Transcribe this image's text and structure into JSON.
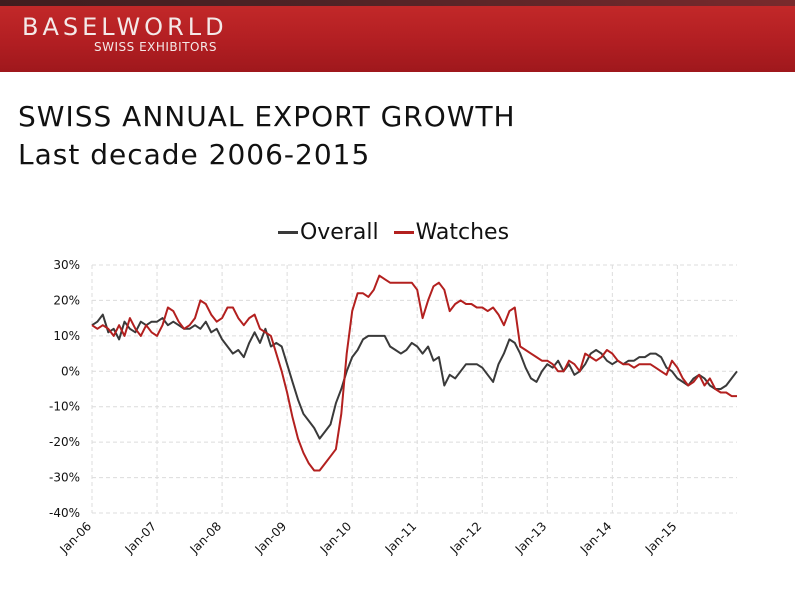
{
  "banner": {
    "brand": "BASELWORLD",
    "sub": "SWISS EXHIBITORS"
  },
  "title": "SWISS ANNUAL EXPORT GROWTH",
  "subtitle": "Last decade 2006-2015",
  "colors": {
    "overall": "#3a3a3a",
    "watches": "#b3201f",
    "grid": "#dcdcdc"
  },
  "chart_data": {
    "type": "line",
    "legend": {
      "placement": "top",
      "entries": [
        "Overall",
        "Watches"
      ]
    },
    "x_start": "Jan-06",
    "x_end": "Dec-15",
    "x_ticks": [
      "Jan-06",
      "Jan-07",
      "Jan-08",
      "Jan-09",
      "Jan-10",
      "Jan-11",
      "Jan-12",
      "Jan-13",
      "Jan-14",
      "Jan-15"
    ],
    "y_ticks": [
      "30%",
      "20%",
      "10%",
      "0%",
      "-10%",
      "-20%",
      "-30%",
      "-40%"
    ],
    "ylim": [
      -40,
      30
    ],
    "grid": true,
    "series": [
      {
        "name": "Overall",
        "values": [
          13,
          14,
          16,
          11,
          12,
          9,
          14,
          12,
          11,
          14,
          13,
          14,
          14,
          15,
          13,
          14,
          13,
          12,
          12,
          13,
          12,
          14,
          11,
          12,
          9,
          7,
          5,
          6,
          4,
          8,
          11,
          8,
          12,
          7,
          8,
          7,
          2,
          -3,
          -8,
          -12,
          -14,
          -16,
          -19,
          -17,
          -15,
          -9,
          -5,
          0,
          4,
          6,
          9,
          10,
          10,
          10,
          10,
          7,
          6,
          5,
          6,
          8,
          7,
          5,
          7,
          3,
          4,
          -4,
          -1,
          -2,
          0,
          2,
          2,
          2,
          1,
          -1,
          -3,
          2,
          5,
          9,
          8,
          5,
          1,
          -2,
          -3,
          0,
          2,
          1,
          3,
          0,
          2,
          -1,
          0,
          2,
          5,
          6,
          5,
          3,
          2,
          3,
          2,
          3,
          3,
          4,
          4,
          5,
          5,
          4,
          1,
          0,
          -2,
          -3,
          -4,
          -2,
          -1,
          -2,
          -4,
          -5,
          -5,
          -4,
          -2,
          0
        ]
      },
      {
        "name": "Watches",
        "values": [
          13,
          12,
          13,
          12,
          10,
          13,
          10,
          15,
          12,
          10,
          13,
          11,
          10,
          13,
          18,
          17,
          14,
          12,
          13,
          15,
          20,
          19,
          16,
          14,
          15,
          18,
          18,
          15,
          13,
          15,
          16,
          12,
          11,
          10,
          5,
          0,
          -6,
          -13,
          -19,
          -23,
          -26,
          -28,
          -28,
          -26,
          -24,
          -22,
          -12,
          5,
          17,
          22,
          22,
          21,
          23,
          27,
          26,
          25,
          25,
          25,
          25,
          25,
          23,
          15,
          20,
          24,
          25,
          23,
          17,
          19,
          20,
          19,
          19,
          18,
          18,
          17,
          18,
          16,
          13,
          17,
          18,
          7,
          6,
          5,
          4,
          3,
          3,
          2,
          0,
          0,
          3,
          2,
          0,
          5,
          4,
          3,
          4,
          6,
          5,
          3,
          2,
          2,
          1,
          2,
          2,
          2,
          1,
          0,
          -1,
          3,
          1,
          -2,
          -4,
          -3,
          -1,
          -4,
          -2,
          -5,
          -6,
          -6,
          -7,
          -7
        ]
      }
    ]
  }
}
